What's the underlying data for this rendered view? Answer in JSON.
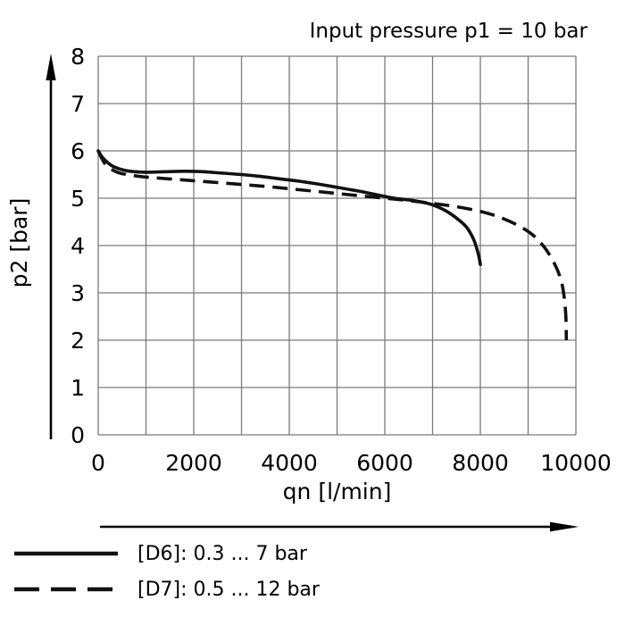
{
  "chart_data": {
    "type": "line",
    "title": "Input pressure p1 = 10 bar",
    "xlabel": "qn [l/min]",
    "ylabel": "p2 [bar]",
    "xlim": [
      0,
      10000
    ],
    "ylim": [
      0,
      8
    ],
    "x_ticks": [
      0,
      2000,
      4000,
      6000,
      8000,
      10000
    ],
    "y_ticks": [
      0,
      1,
      2,
      3,
      4,
      5,
      6,
      7,
      8
    ],
    "x_grid_step": 1000,
    "y_grid_step": 1,
    "grid": true,
    "legend_position": "below",
    "series": [
      {
        "name": "[D6]: 0.3 ... 7 bar",
        "style": "solid",
        "points": [
          [
            0,
            6.0
          ],
          [
            100,
            5.85
          ],
          [
            300,
            5.68
          ],
          [
            600,
            5.58
          ],
          [
            1000,
            5.55
          ],
          [
            1400,
            5.56
          ],
          [
            1800,
            5.57
          ],
          [
            2200,
            5.56
          ],
          [
            2600,
            5.53
          ],
          [
            3000,
            5.5
          ],
          [
            3400,
            5.46
          ],
          [
            3800,
            5.41
          ],
          [
            4200,
            5.36
          ],
          [
            4600,
            5.3
          ],
          [
            5000,
            5.23
          ],
          [
            5400,
            5.16
          ],
          [
            5800,
            5.08
          ],
          [
            6200,
            5.0
          ],
          [
            6600,
            4.95
          ],
          [
            6900,
            4.89
          ],
          [
            7100,
            4.82
          ],
          [
            7300,
            4.72
          ],
          [
            7500,
            4.58
          ],
          [
            7700,
            4.4
          ],
          [
            7850,
            4.15
          ],
          [
            7950,
            3.85
          ],
          [
            8000,
            3.6
          ]
        ]
      },
      {
        "name": "[D7]: 0.5 ... 12 bar",
        "style": "dashed",
        "points": [
          [
            0,
            6.0
          ],
          [
            150,
            5.72
          ],
          [
            400,
            5.55
          ],
          [
            800,
            5.47
          ],
          [
            1200,
            5.43
          ],
          [
            1600,
            5.4
          ],
          [
            2000,
            5.37
          ],
          [
            2500,
            5.33
          ],
          [
            3000,
            5.29
          ],
          [
            3500,
            5.25
          ],
          [
            4000,
            5.2
          ],
          [
            4500,
            5.15
          ],
          [
            5000,
            5.1
          ],
          [
            5500,
            5.05
          ],
          [
            6000,
            5.0
          ],
          [
            6500,
            4.95
          ],
          [
            7000,
            4.89
          ],
          [
            7500,
            4.82
          ],
          [
            8000,
            4.72
          ],
          [
            8400,
            4.6
          ],
          [
            8800,
            4.42
          ],
          [
            9100,
            4.22
          ],
          [
            9350,
            3.95
          ],
          [
            9550,
            3.62
          ],
          [
            9680,
            3.3
          ],
          [
            9750,
            2.95
          ],
          [
            9790,
            2.5
          ],
          [
            9800,
            2.0
          ]
        ]
      }
    ]
  }
}
